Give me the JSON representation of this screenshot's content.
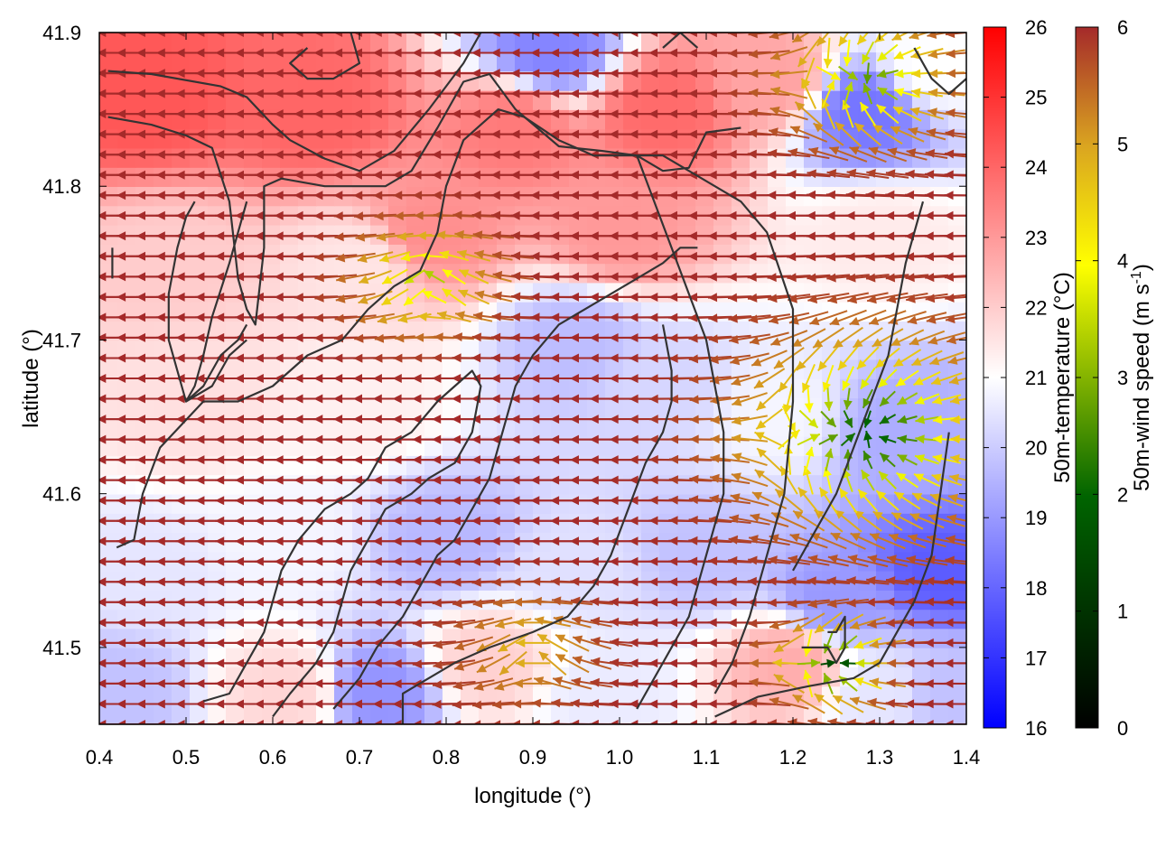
{
  "chart_data": {
    "type": "heatmap",
    "title": "",
    "xlabel": "longitude (°)",
    "ylabel": "latitude (°)",
    "xlim": [
      0.4,
      1.4
    ],
    "ylim": [
      41.45,
      41.9
    ],
    "x_ticks": [
      "0.4",
      "0.5",
      "0.6",
      "0.7",
      "0.8",
      "0.9",
      "1.0",
      "1.1",
      "1.2",
      "1.3",
      "1.4"
    ],
    "x_tick_values": [
      0.4,
      0.5,
      0.6,
      0.7,
      0.8,
      0.9,
      1.0,
      1.1,
      1.2,
      1.3,
      1.4
    ],
    "y_ticks": [
      "41.5",
      "41.6",
      "41.7",
      "41.8",
      "41.9"
    ],
    "y_tick_values": [
      41.5,
      41.6,
      41.7,
      41.8,
      41.9
    ],
    "grid": false,
    "temperature_colorbar": {
      "label": "50m-temperature (°C)",
      "range": [
        16,
        26
      ],
      "ticks": [
        "16",
        "17",
        "18",
        "19",
        "20",
        "21",
        "22",
        "23",
        "24",
        "25",
        "26"
      ],
      "tick_values": [
        16,
        17,
        18,
        19,
        20,
        21,
        22,
        23,
        24,
        25,
        26
      ],
      "colors": [
        "#0000ff",
        "#ffffff",
        "#ff0000"
      ]
    },
    "wind_colorbar": {
      "label_main": "50m-wind speed (m s",
      "label_sup": "-1",
      "label_end": ")",
      "range": [
        0,
        6
      ],
      "ticks": [
        "0",
        "1",
        "2",
        "3",
        "4",
        "5",
        "6"
      ],
      "tick_values": [
        0,
        1,
        2,
        3,
        4,
        5,
        6
      ],
      "colors": [
        "#000000",
        "#006400",
        "#ffff00",
        "#daa520",
        "#a52a2a"
      ]
    },
    "temperature_field": [
      {
        "lon": 0.45,
        "lat": 41.86,
        "t": 24.3
      },
      {
        "lon": 0.65,
        "lat": 41.85,
        "t": 24.0
      },
      {
        "lon": 0.88,
        "lat": 41.84,
        "t": 23.6
      },
      {
        "lon": 0.92,
        "lat": 41.89,
        "t": 18.6
      },
      {
        "lon": 1.05,
        "lat": 41.85,
        "t": 23.9
      },
      {
        "lon": 1.18,
        "lat": 41.87,
        "t": 22.8
      },
      {
        "lon": 1.28,
        "lat": 41.85,
        "t": 18.3
      },
      {
        "lon": 1.36,
        "lat": 41.88,
        "t": 21.0
      },
      {
        "lon": 0.48,
        "lat": 41.75,
        "t": 22.0
      },
      {
        "lon": 0.7,
        "lat": 41.75,
        "t": 21.5
      },
      {
        "lon": 0.78,
        "lat": 41.77,
        "t": 23.2
      },
      {
        "lon": 1.0,
        "lat": 41.77,
        "t": 23.0
      },
      {
        "lon": 1.3,
        "lat": 41.77,
        "t": 21.4
      },
      {
        "lon": 0.5,
        "lat": 41.66,
        "t": 21.6
      },
      {
        "lon": 0.7,
        "lat": 41.66,
        "t": 21.3
      },
      {
        "lon": 0.95,
        "lat": 41.7,
        "t": 19.7
      },
      {
        "lon": 1.05,
        "lat": 41.67,
        "t": 20.2
      },
      {
        "lon": 1.18,
        "lat": 41.65,
        "t": 20.8
      },
      {
        "lon": 1.32,
        "lat": 41.64,
        "t": 19.4
      },
      {
        "lon": 1.37,
        "lat": 41.55,
        "t": 17.8
      },
      {
        "lon": 0.45,
        "lat": 41.55,
        "t": 20.5
      },
      {
        "lon": 0.62,
        "lat": 41.57,
        "t": 20.8
      },
      {
        "lon": 0.8,
        "lat": 41.57,
        "t": 19.6
      },
      {
        "lon": 0.95,
        "lat": 41.55,
        "t": 20.4
      },
      {
        "lon": 1.1,
        "lat": 41.56,
        "t": 19.8
      },
      {
        "lon": 1.25,
        "lat": 41.53,
        "t": 19.0
      },
      {
        "lon": 0.42,
        "lat": 41.47,
        "t": 19.8
      },
      {
        "lon": 0.62,
        "lat": 41.47,
        "t": 21.8
      },
      {
        "lon": 0.72,
        "lat": 41.47,
        "t": 18.9
      },
      {
        "lon": 0.85,
        "lat": 41.49,
        "t": 21.9
      },
      {
        "lon": 0.98,
        "lat": 41.47,
        "t": 20.6
      },
      {
        "lon": 1.2,
        "lat": 41.49,
        "t": 22.6
      },
      {
        "lon": 1.3,
        "lat": 41.47,
        "t": 20.5
      },
      {
        "lon": 1.38,
        "lat": 41.47,
        "t": 19.8
      }
    ],
    "wind_field_sources": [
      {
        "kind": "uniform",
        "u": -1,
        "v": 0,
        "s": 5.9,
        "w": 1.0
      },
      {
        "kind": "sink",
        "lon": 1.29,
        "lat": 41.64,
        "r": 0.09,
        "s": 1.4
      },
      {
        "kind": "sink",
        "lon": 1.29,
        "lat": 41.87,
        "r": 0.06,
        "s": 2.0
      },
      {
        "kind": "sink",
        "lon": 1.25,
        "lat": 41.49,
        "r": 0.04,
        "s": 1.0
      },
      {
        "kind": "shear",
        "lon": 0.78,
        "lat": 41.74,
        "r": 0.05,
        "s": 2.5
      },
      {
        "kind": "shear",
        "lon": 0.9,
        "lat": 41.5,
        "r": 0.05,
        "s": 4.2
      }
    ],
    "series": [
      {
        "points": [
          [
            0.41,
            41.875
          ],
          [
            0.46,
            41.873
          ],
          [
            0.54,
            41.865
          ],
          [
            0.57,
            41.858
          ],
          [
            0.6,
            41.84
          ],
          [
            0.62,
            41.83
          ],
          [
            0.66,
            41.818
          ],
          [
            0.7,
            41.81
          ],
          [
            0.74,
            41.823
          ],
          [
            0.78,
            41.85
          ],
          [
            0.82,
            41.88
          ],
          [
            0.84,
            41.9
          ]
        ]
      },
      {
        "points": [
          [
            0.41,
            41.845
          ],
          [
            0.46,
            41.84
          ],
          [
            0.5,
            41.833
          ],
          [
            0.53,
            41.825
          ],
          [
            0.55,
            41.79
          ],
          [
            0.56,
            41.74
          ],
          [
            0.57,
            41.72
          ],
          [
            0.58,
            41.71
          ],
          [
            0.59,
            41.76
          ],
          [
            0.59,
            41.8
          ],
          [
            0.61,
            41.805
          ],
          [
            0.66,
            41.8
          ],
          [
            0.7,
            41.8
          ],
          [
            0.73,
            41.8
          ],
          [
            0.76,
            41.81
          ],
          [
            0.79,
            41.838
          ],
          [
            0.82,
            41.868
          ],
          [
            0.85,
            41.873
          ],
          [
            0.88,
            41.85
          ],
          [
            0.93,
            41.826
          ],
          [
            0.98,
            41.823
          ],
          [
            1.02,
            41.82
          ],
          [
            1.05,
            41.81
          ],
          [
            1.08,
            41.812
          ],
          [
            1.1,
            41.835
          ],
          [
            1.14,
            41.838
          ]
        ]
      },
      {
        "points": [
          [
            0.415,
            41.76
          ],
          [
            0.415,
            41.74
          ]
        ]
      },
      {
        "points": [
          [
            0.57,
            41.79
          ],
          [
            0.55,
            41.75
          ],
          [
            0.53,
            41.715
          ],
          [
            0.52,
            41.69
          ],
          [
            0.51,
            41.67
          ],
          [
            0.5,
            41.66
          ],
          [
            0.52,
            41.67
          ],
          [
            0.54,
            41.69
          ],
          [
            0.56,
            41.7
          ],
          [
            0.57,
            41.71
          ]
        ]
      },
      {
        "points": [
          [
            0.51,
            41.79
          ],
          [
            0.5,
            41.78
          ],
          [
            0.49,
            41.76
          ],
          [
            0.48,
            41.73
          ],
          [
            0.48,
            41.7
          ],
          [
            0.49,
            41.68
          ],
          [
            0.5,
            41.66
          ],
          [
            0.53,
            41.67
          ],
          [
            0.55,
            41.69
          ],
          [
            0.57,
            41.7
          ]
        ]
      },
      {
        "points": [
          [
            0.42,
            41.565
          ],
          [
            0.44,
            41.57
          ],
          [
            0.45,
            41.6
          ],
          [
            0.47,
            41.63
          ],
          [
            0.52,
            41.66
          ],
          [
            0.56,
            41.66
          ],
          [
            0.6,
            41.67
          ],
          [
            0.64,
            41.69
          ],
          [
            0.68,
            41.7
          ],
          [
            0.71,
            41.72
          ],
          [
            0.74,
            41.735
          ],
          [
            0.77,
            41.745
          ],
          [
            0.79,
            41.77
          ],
          [
            0.8,
            41.8
          ],
          [
            0.82,
            41.83
          ],
          [
            0.84,
            41.84
          ],
          [
            0.86,
            41.85
          ],
          [
            0.89,
            41.845
          ],
          [
            0.93,
            41.83
          ],
          [
            0.97,
            41.82
          ],
          [
            1.01,
            41.82
          ],
          [
            1.05,
            41.82
          ],
          [
            1.08,
            41.81
          ],
          [
            1.11,
            41.8
          ],
          [
            1.14,
            41.79
          ],
          [
            1.17,
            41.77
          ],
          [
            1.2,
            41.72
          ],
          [
            1.2,
            41.66
          ],
          [
            1.19,
            41.6
          ],
          [
            1.17,
            41.56
          ],
          [
            1.15,
            41.52
          ],
          [
            1.13,
            41.49
          ],
          [
            1.11,
            41.47
          ]
        ]
      },
      {
        "points": [
          [
            0.52,
            41.465
          ],
          [
            0.55,
            41.47
          ],
          [
            0.57,
            41.49
          ],
          [
            0.59,
            41.51
          ],
          [
            0.6,
            41.53
          ],
          [
            0.61,
            41.55
          ],
          [
            0.63,
            41.57
          ],
          [
            0.66,
            41.59
          ],
          [
            0.69,
            41.6
          ],
          [
            0.71,
            41.61
          ],
          [
            0.73,
            41.63
          ],
          [
            0.76,
            41.64
          ],
          [
            0.79,
            41.66
          ],
          [
            0.81,
            41.67
          ],
          [
            0.83,
            41.68
          ],
          [
            0.84,
            41.67
          ],
          [
            0.83,
            41.64
          ],
          [
            0.81,
            41.62
          ],
          [
            0.78,
            41.61
          ],
          [
            0.76,
            41.6
          ],
          [
            0.73,
            41.59
          ],
          [
            0.71,
            41.57
          ],
          [
            0.69,
            41.55
          ],
          [
            0.68,
            41.53
          ],
          [
            0.67,
            41.51
          ],
          [
            0.65,
            41.49
          ],
          [
            0.62,
            41.47
          ],
          [
            0.6,
            41.455
          ]
        ]
      },
      {
        "points": [
          [
            0.67,
            41.46
          ],
          [
            0.7,
            41.48
          ],
          [
            0.72,
            41.5
          ],
          [
            0.75,
            41.52
          ],
          [
            0.77,
            41.54
          ],
          [
            0.79,
            41.56
          ],
          [
            0.81,
            41.57
          ],
          [
            0.83,
            41.59
          ],
          [
            0.85,
            41.61
          ],
          [
            0.86,
            41.63
          ],
          [
            0.87,
            41.65
          ],
          [
            0.88,
            41.67
          ],
          [
            0.9,
            41.69
          ],
          [
            0.93,
            41.71
          ],
          [
            0.96,
            41.72
          ],
          [
            0.99,
            41.73
          ],
          [
            1.02,
            41.74
          ],
          [
            1.05,
            41.75
          ],
          [
            1.07,
            41.76
          ],
          [
            1.09,
            41.76
          ]
        ]
      },
      {
        "points": [
          [
            0.75,
            41.45
          ],
          [
            0.75,
            41.47
          ],
          [
            0.78,
            41.48
          ],
          [
            0.81,
            41.49
          ],
          [
            0.85,
            41.5
          ],
          [
            0.9,
            41.51
          ],
          [
            0.94,
            41.52
          ],
          [
            0.97,
            41.54
          ],
          [
            0.99,
            41.56
          ],
          [
            1.01,
            41.59
          ],
          [
            1.03,
            41.62
          ],
          [
            1.05,
            41.64
          ],
          [
            1.06,
            41.66
          ],
          [
            1.06,
            41.68
          ],
          [
            1.05,
            41.71
          ]
        ]
      },
      {
        "points": [
          [
            1.02,
            41.46
          ],
          [
            1.05,
            41.49
          ],
          [
            1.08,
            41.52
          ],
          [
            1.1,
            41.56
          ],
          [
            1.12,
            41.6
          ],
          [
            1.12,
            41.64
          ],
          [
            1.11,
            41.67
          ],
          [
            1.1,
            41.7
          ],
          [
            1.08,
            41.73
          ],
          [
            1.06,
            41.76
          ],
          [
            1.04,
            41.79
          ],
          [
            1.02,
            41.82
          ]
        ]
      },
      {
        "points": [
          [
            1.11,
            41.455
          ],
          [
            1.16,
            41.468
          ],
          [
            1.22,
            41.475
          ],
          [
            1.27,
            41.48
          ],
          [
            1.3,
            41.49
          ],
          [
            1.32,
            41.51
          ],
          [
            1.34,
            41.53
          ],
          [
            1.36,
            41.56
          ],
          [
            1.37,
            41.6
          ],
          [
            1.38,
            41.64
          ]
        ]
      },
      {
        "points": [
          [
            1.2,
            41.55
          ],
          [
            1.23,
            41.58
          ],
          [
            1.25,
            41.6
          ],
          [
            1.27,
            41.63
          ],
          [
            1.29,
            41.66
          ],
          [
            1.31,
            41.69
          ],
          [
            1.32,
            41.72
          ],
          [
            1.33,
            41.75
          ],
          [
            1.34,
            41.77
          ],
          [
            1.35,
            41.79
          ]
        ]
      },
      {
        "points": [
          [
            1.21,
            41.5
          ],
          [
            1.24,
            41.5
          ],
          [
            1.25,
            41.49
          ],
          [
            1.26,
            41.5
          ],
          [
            1.26,
            41.52
          ],
          [
            1.25,
            41.51
          ],
          [
            1.24,
            41.51
          ]
        ]
      },
      {
        "points": [
          [
            1.34,
            41.89
          ],
          [
            1.36,
            41.87
          ],
          [
            1.38,
            41.86
          ],
          [
            1.4,
            41.87
          ]
        ]
      },
      {
        "points": [
          [
            0.69,
            41.9
          ],
          [
            0.7,
            41.88
          ],
          [
            0.67,
            41.87
          ],
          [
            0.64,
            41.87
          ],
          [
            0.62,
            41.88
          ],
          [
            0.64,
            41.89
          ]
        ]
      },
      {
        "points": [
          [
            1.05,
            41.89
          ],
          [
            1.07,
            41.9
          ],
          [
            1.09,
            41.89
          ]
        ]
      }
    ]
  }
}
